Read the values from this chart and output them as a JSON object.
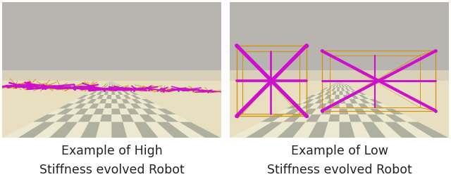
{
  "left_border_color": "#e8231a",
  "right_border_color": "#4a9fd4",
  "left_caption_line1": "Example of High",
  "left_caption_line2": "Stiffness evolved Robot",
  "right_caption_line1": "Example of Low",
  "right_caption_line2": "Stiffness evolved Robot",
  "caption_fontsize": 12.5,
  "caption_color": "#222222",
  "fig_bg_color": "#ffffff",
  "border_linewidth": 3.5,
  "figwidth": 6.4,
  "figheight": 2.53,
  "sky_color": "#b8b4b0",
  "horizon_color": "#d8d0b8",
  "sand_color": "#e8dfc0",
  "checker_light": "#ede8d0",
  "checker_dark": "#b0b0a0",
  "orange_strut": "#d4920a",
  "magenta_strut": "#cc10cc"
}
